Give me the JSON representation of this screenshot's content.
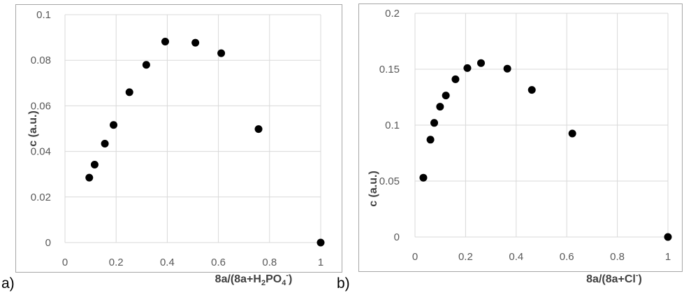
{
  "chart_data": [
    {
      "type": "scatter",
      "panel_label": "a)",
      "xlabel_parts": [
        "8a/(8a+H",
        "2",
        "PO",
        "4",
        "-",
        ")"
      ],
      "ylabel": "c (a.u.)",
      "xlim": [
        0,
        1
      ],
      "ylim": [
        0,
        0.1
      ],
      "x_ticks": [
        "0",
        "0.2",
        "0.4",
        "0.6",
        "0.8",
        "1"
      ],
      "y_ticks": [
        "0",
        "0.02",
        "0.04",
        "0.06",
        "0.08",
        "0.1"
      ],
      "x_tick_values": [
        0,
        0.2,
        0.4,
        0.6,
        0.8,
        1
      ],
      "y_tick_values": [
        0,
        0.02,
        0.04,
        0.06,
        0.08,
        0.1
      ],
      "grid": true,
      "marker_color": "#000000",
      "points": [
        {
          "x": 0.095,
          "y": 0.0285
        },
        {
          "x": 0.116,
          "y": 0.0342
        },
        {
          "x": 0.156,
          "y": 0.0434
        },
        {
          "x": 0.19,
          "y": 0.0516
        },
        {
          "x": 0.252,
          "y": 0.066
        },
        {
          "x": 0.318,
          "y": 0.078
        },
        {
          "x": 0.392,
          "y": 0.0882
        },
        {
          "x": 0.51,
          "y": 0.0877
        },
        {
          "x": 0.611,
          "y": 0.0831
        },
        {
          "x": 0.757,
          "y": 0.0498
        },
        {
          "x": 1.0,
          "y": 0.0
        }
      ]
    },
    {
      "type": "scatter",
      "panel_label": "b)",
      "xlabel_parts": [
        "8a/(8a+Cl",
        "-",
        ")"
      ],
      "ylabel": "c (a.u.)",
      "xlim": [
        0,
        1
      ],
      "ylim": [
        0,
        0.2
      ],
      "x_ticks": [
        "0",
        "0.2",
        "0.4",
        "0.6",
        "0.8",
        "1"
      ],
      "y_ticks": [
        "0",
        "0.05",
        "0.1",
        "0.15",
        "0.2"
      ],
      "x_tick_values": [
        0,
        0.2,
        0.4,
        0.6,
        0.8,
        1
      ],
      "y_tick_values": [
        0,
        0.05,
        0.1,
        0.15,
        0.2
      ],
      "grid": true,
      "marker_color": "#000000",
      "points": [
        {
          "x": 0.033,
          "y": 0.053
        },
        {
          "x": 0.061,
          "y": 0.087
        },
        {
          "x": 0.076,
          "y": 0.102
        },
        {
          "x": 0.099,
          "y": 0.1165
        },
        {
          "x": 0.122,
          "y": 0.1265
        },
        {
          "x": 0.16,
          "y": 0.141
        },
        {
          "x": 0.207,
          "y": 0.151
        },
        {
          "x": 0.261,
          "y": 0.1555
        },
        {
          "x": 0.365,
          "y": 0.1505
        },
        {
          "x": 0.462,
          "y": 0.1315
        },
        {
          "x": 0.622,
          "y": 0.0925
        },
        {
          "x": 1.0,
          "y": 0.0
        }
      ]
    }
  ]
}
